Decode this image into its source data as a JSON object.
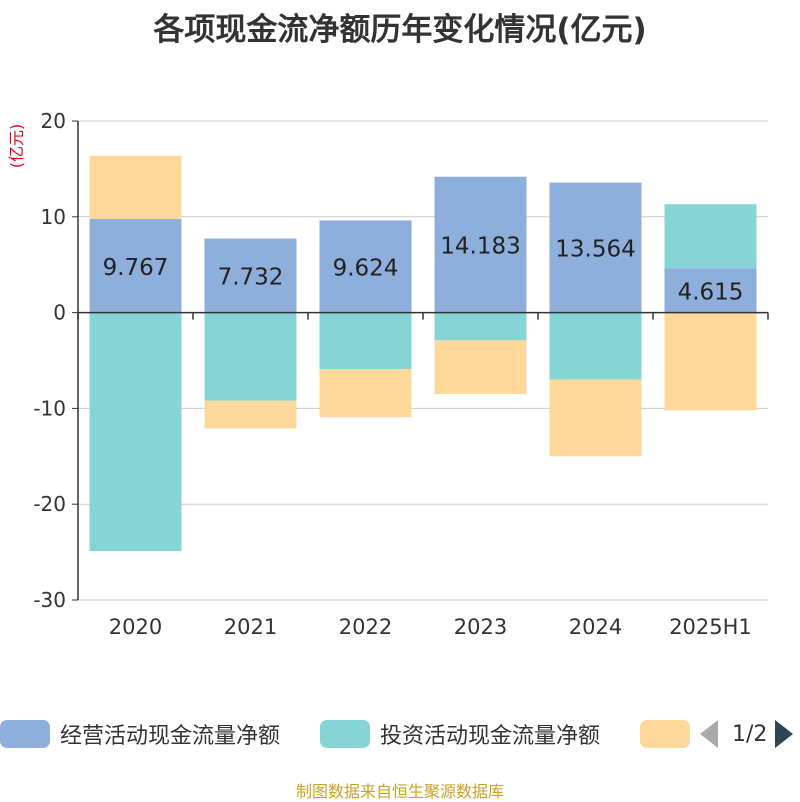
{
  "chart_data": {
    "type": "bar",
    "stacked": true,
    "title": "各项现金流净额历年变化情况(亿元)",
    "ylabel": "(亿元)",
    "categories": [
      "2020",
      "2021",
      "2022",
      "2023",
      "2024",
      "2025H1"
    ],
    "ylim": [
      -30,
      20
    ],
    "yticks": [
      20,
      10,
      0,
      -10,
      -20,
      -30
    ],
    "grid": true,
    "series": [
      {
        "name": "经营活动现金流量净额",
        "color": "#8eaedb",
        "values": [
          9.767,
          7.732,
          9.624,
          14.183,
          13.564,
          4.615
        ],
        "show_labels": true
      },
      {
        "name": "投资活动现金流量净额",
        "color": "#85d4d6",
        "values": [
          -24.9,
          -9.2,
          -5.9,
          -2.9,
          -7.0,
          6.7
        ],
        "show_labels": false
      },
      {
        "name": "",
        "color": "#fdd898",
        "values": [
          6.6,
          -2.9,
          -5.0,
          -5.6,
          -8.0,
          -10.2
        ],
        "show_labels": false
      }
    ],
    "legend": {
      "position": "bottom",
      "page": "1/2"
    }
  },
  "footer": "制图数据来自恒生聚源数据库"
}
